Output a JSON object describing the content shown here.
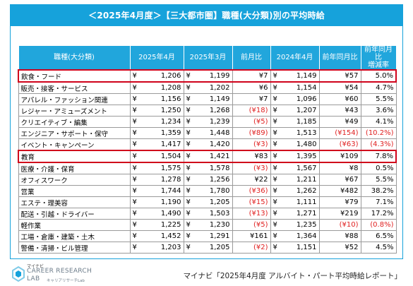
{
  "title": "＜2025年4月度＞【三大都市圏】職種(大分類)別の平均時給",
  "headers": [
    "職種(大分類)",
    "2025年4月",
    "2025年3月",
    "前月比",
    "2024年4月",
    "前年同月比",
    "前年同月比\n増減率"
  ],
  "header_lines": {
    "last_line1": "前年同月比",
    "last_line2": "増減率"
  },
  "currency": "¥",
  "rows": [
    {
      "cat": "飲食・フード",
      "apr25": "1,206",
      "mar25": "1,199",
      "mom": "¥7",
      "mom_neg": false,
      "apr24": "1,149",
      "yoy": "¥57",
      "yoy_neg": false,
      "rate": "5.0%",
      "rate_neg": false,
      "hl": true
    },
    {
      "cat": "販売・接客・サービス",
      "apr25": "1,208",
      "mar25": "1,202",
      "mom": "¥6",
      "mom_neg": false,
      "apr24": "1,154",
      "yoy": "¥54",
      "yoy_neg": false,
      "rate": "4.7%",
      "rate_neg": false,
      "hl": false
    },
    {
      "cat": "アパレル・ファッション関連",
      "apr25": "1,156",
      "mar25": "1,149",
      "mom": "¥7",
      "mom_neg": false,
      "apr24": "1,096",
      "yoy": "¥60",
      "yoy_neg": false,
      "rate": "5.5%",
      "rate_neg": false,
      "hl": false
    },
    {
      "cat": "レジャー・アミューズメント",
      "apr25": "1,250",
      "mar25": "1,268",
      "mom": "(¥18)",
      "mom_neg": true,
      "apr24": "1,207",
      "yoy": "¥43",
      "yoy_neg": false,
      "rate": "3.6%",
      "rate_neg": false,
      "hl": false
    },
    {
      "cat": "クリエイティブ・編集",
      "apr25": "1,234",
      "mar25": "1,239",
      "mom": "(¥5)",
      "mom_neg": true,
      "apr24": "1,185",
      "yoy": "¥49",
      "yoy_neg": false,
      "rate": "4.1%",
      "rate_neg": false,
      "hl": false
    },
    {
      "cat": "エンジニア・サポート・保守",
      "apr25": "1,359",
      "mar25": "1,448",
      "mom": "(¥89)",
      "mom_neg": true,
      "apr24": "1,513",
      "yoy": "(¥154)",
      "yoy_neg": true,
      "rate": "(10.2%)",
      "rate_neg": true,
      "hl": false
    },
    {
      "cat": "イベント・キャンペーン",
      "apr25": "1,417",
      "mar25": "1,420",
      "mom": "(¥3)",
      "mom_neg": true,
      "apr24": "1,480",
      "yoy": "(¥63)",
      "yoy_neg": true,
      "rate": "(4.3%)",
      "rate_neg": true,
      "hl": false
    },
    {
      "cat": "教育",
      "apr25": "1,504",
      "mar25": "1,421",
      "mom": "¥83",
      "mom_neg": false,
      "apr24": "1,395",
      "yoy": "¥109",
      "yoy_neg": false,
      "rate": "7.8%",
      "rate_neg": false,
      "hl": true
    },
    {
      "cat": "医療・介護・保育",
      "apr25": "1,575",
      "mar25": "1,578",
      "mom": "(¥3)",
      "mom_neg": true,
      "apr24": "1,567",
      "yoy": "¥8",
      "yoy_neg": false,
      "rate": "0.5%",
      "rate_neg": false,
      "hl": false
    },
    {
      "cat": "オフィスワーク",
      "apr25": "1,278",
      "mar25": "1,256",
      "mom": "¥22",
      "mom_neg": false,
      "apr24": "1,211",
      "yoy": "¥67",
      "yoy_neg": false,
      "rate": "5.5%",
      "rate_neg": false,
      "hl": false
    },
    {
      "cat": "営業",
      "apr25": "1,744",
      "mar25": "1,780",
      "mom": "(¥36)",
      "mom_neg": true,
      "apr24": "1,262",
      "yoy": "¥482",
      "yoy_neg": false,
      "rate": "38.2%",
      "rate_neg": false,
      "hl": false
    },
    {
      "cat": "エステ・理美容",
      "apr25": "1,190",
      "mar25": "1,205",
      "mom": "(¥15)",
      "mom_neg": true,
      "apr24": "1,111",
      "yoy": "¥79",
      "yoy_neg": false,
      "rate": "7.1%",
      "rate_neg": false,
      "hl": false
    },
    {
      "cat": "配送・引越・ドライバー",
      "apr25": "1,490",
      "mar25": "1,503",
      "mom": "(¥13)",
      "mom_neg": true,
      "apr24": "1,271",
      "yoy": "¥219",
      "yoy_neg": false,
      "rate": "17.2%",
      "rate_neg": false,
      "hl": false
    },
    {
      "cat": "軽作業",
      "apr25": "1,225",
      "mar25": "1,230",
      "mom": "(¥5)",
      "mom_neg": true,
      "apr24": "1,235",
      "yoy": "(¥10)",
      "yoy_neg": true,
      "rate": "(0.8%)",
      "rate_neg": true,
      "hl": false
    },
    {
      "cat": "工場・倉庫・建築・土木",
      "apr25": "1,452",
      "mar25": "1,291",
      "mom": "¥161",
      "mom_neg": false,
      "apr24": "1,364",
      "yoy": "¥88",
      "yoy_neg": false,
      "rate": "6.5%",
      "rate_neg": false,
      "hl": false
    },
    {
      "cat": "警備・清掃・ビル管理",
      "apr25": "1,203",
      "mar25": "1,205",
      "mom": "(¥2)",
      "mom_neg": true,
      "apr24": "1,151",
      "yoy": "¥52",
      "yoy_neg": false,
      "rate": "4.5%",
      "rate_neg": false,
      "hl": false
    }
  ],
  "logo": {
    "top": "マイナビ",
    "line1": "CAREER RESEARCH",
    "line2": "LAB",
    "sub": "キャリアリサーチLab"
  },
  "source": "マイナビ「2025年4月度 アルバイト・パート平均時給レポート」",
  "colors": {
    "accent": "#16a2db",
    "header": "#21a6dc",
    "highlight": "#d0021b",
    "negative": "#e02020"
  }
}
